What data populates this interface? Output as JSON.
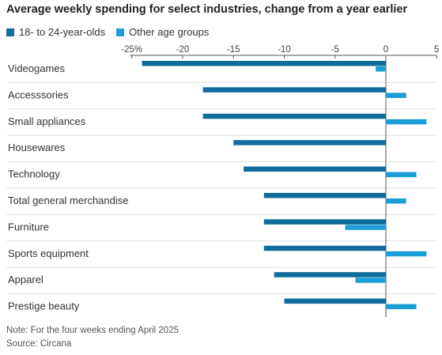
{
  "title": "Average weekly spending for select industries, change from a year earlier",
  "legend": {
    "series_a": "18- to 24-year-olds",
    "series_b": "Other age groups"
  },
  "colors": {
    "series_a": "#0f6c9b",
    "series_b": "#1c9fd8",
    "axis": "#555555",
    "grid": "#cccccc",
    "separator": "#e2e2e2"
  },
  "note": "Note: For the four weeks ending April 2025",
  "source": "Source: Circana",
  "chart_data": {
    "type": "bar",
    "orientation": "horizontal",
    "title": "Average weekly spending for select industries, change from a year earlier",
    "xlabel": "",
    "ylabel": "",
    "xlim": [
      -25,
      5
    ],
    "tick_values": [
      -25,
      -20,
      -15,
      -10,
      -5,
      0,
      5
    ],
    "tick_labels": [
      "-25%",
      "-20",
      "-15",
      "-10",
      "-5",
      "0",
      "5"
    ],
    "grid": false,
    "legend_position": "top-left",
    "categories": [
      "Videogames",
      "Accesssories",
      "Small appliances",
      "Housewares",
      "Technology",
      "Total general merchandise",
      "Furniture",
      "Sports equipment",
      "Apparel",
      "Prestige beauty"
    ],
    "series": [
      {
        "name": "18- to 24-year-olds",
        "values": [
          -24,
          -18,
          -18,
          -15,
          -14,
          -12,
          -12,
          -12,
          -11,
          -10
        ]
      },
      {
        "name": "Other age groups",
        "values": [
          -1,
          2,
          4,
          0,
          3,
          2,
          -4,
          4,
          -3,
          3
        ]
      }
    ]
  }
}
